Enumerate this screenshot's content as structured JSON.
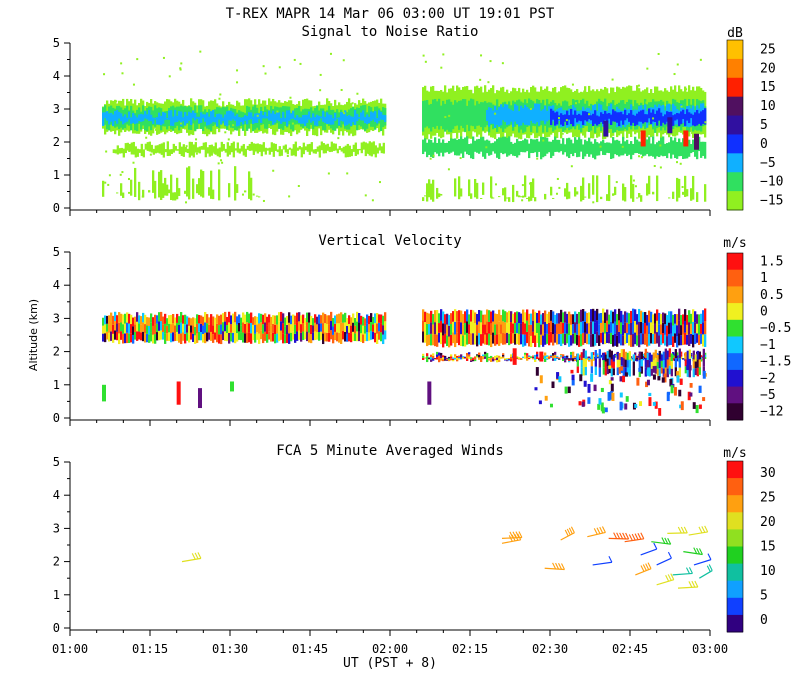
{
  "figure": {
    "title": "T-REX   MAPR 14 Mar 06  03:00 UT  19:01  PST",
    "ylabel": "Altitude (km)",
    "xlabel": "UT  (PST + 8)",
    "x_ticks": [
      "01:00",
      "01:15",
      "01:30",
      "01:45",
      "02:00",
      "02:15",
      "02:30",
      "02:45",
      "03:00"
    ],
    "y_ticks": [
      "0",
      "1",
      "2",
      "3",
      "4",
      "5"
    ]
  },
  "chart_data": [
    {
      "type": "heatmap",
      "title": "Signal to Noise Ratio",
      "unit": "dB",
      "xlim": [
        "01:00",
        "03:00"
      ],
      "ylim": [
        0,
        5
      ],
      "colorbar": {
        "labels": [
          "25",
          "20",
          "15",
          "10",
          "5",
          "0",
          "-5",
          "-10",
          "-15"
        ],
        "colors": [
          "#ffc000",
          "#ff8000",
          "#ff2000",
          "#501060",
          "#3010a0",
          "#1030ff",
          "#10b0ff",
          "#30e060",
          "#90f020"
        ]
      },
      "layers": [
        {
          "t0": "01:06",
          "t1": "01:59",
          "z0": 2.3,
          "z1": 3.2,
          "level": -15
        },
        {
          "t0": "01:06",
          "t1": "01:59",
          "z0": 2.45,
          "z1": 3.0,
          "level": -10
        },
        {
          "t0": "01:06",
          "t1": "01:59",
          "z0": 2.6,
          "z1": 2.85,
          "level": -5
        },
        {
          "t0": "01:08",
          "t1": "01:59",
          "z0": 1.65,
          "z1": 1.9,
          "level": -15
        },
        {
          "t0": "01:06",
          "t1": "01:36",
          "z0": 0.35,
          "z1": 1.3,
          "level": -15
        },
        {
          "t0": "02:06",
          "t1": "02:59",
          "z0": 2.2,
          "z1": 3.6,
          "level": -15
        },
        {
          "t0": "02:06",
          "t1": "02:59",
          "z0": 2.4,
          "z1": 3.2,
          "level": -10
        },
        {
          "t0": "02:18",
          "t1": "02:59",
          "z0": 2.55,
          "z1": 3.05,
          "level": -5
        },
        {
          "t0": "02:30",
          "t1": "02:59",
          "z0": 2.6,
          "z1": 2.9,
          "level": 0
        },
        {
          "t0": "02:06",
          "t1": "02:59",
          "z0": 1.6,
          "z1": 2.05,
          "level": -10
        },
        {
          "t0": "02:06",
          "t1": "02:59",
          "z0": 0.3,
          "z1": 1.0,
          "level": -15
        }
      ]
    },
    {
      "type": "heatmap",
      "title": "Vertical Velocity",
      "unit": "m/s",
      "xlim": [
        "01:00",
        "03:00"
      ],
      "ylim": [
        0,
        5
      ],
      "colorbar": {
        "labels": [
          "1.5",
          "1",
          "0.5",
          "0",
          "-0.5",
          "-1",
          "-1.5",
          "-2",
          "-5",
          "-12"
        ],
        "colors": [
          "#ff1010",
          "#ff6010",
          "#ffa010",
          "#f0f020",
          "#30e030",
          "#10c8ff",
          "#1068ff",
          "#2010d0",
          "#601080",
          "#300030"
        ]
      },
      "layers": [
        {
          "t0": "01:06",
          "t1": "01:59",
          "z0": 2.3,
          "z1": 3.1,
          "level": "mixed"
        },
        {
          "t0": "02:06",
          "t1": "02:59",
          "z0": 2.2,
          "z1": 3.2,
          "level": "mixed"
        },
        {
          "t0": "02:06",
          "t1": "02:59",
          "z0": 1.75,
          "z1": 1.9,
          "level": "mixed"
        },
        {
          "t0": "02:35",
          "t1": "02:59",
          "z0": 1.3,
          "z1": 2.0,
          "level": "mixed"
        }
      ]
    },
    {
      "type": "scatter",
      "title": "FCA 5 Minute Averaged Winds",
      "unit": "m/s",
      "xlim": [
        "01:00",
        "03:00"
      ],
      "ylim": [
        0,
        5
      ],
      "colorbar": {
        "labels": [
          "30",
          "25",
          "20",
          "15",
          "10",
          "5",
          "0"
        ],
        "colors": [
          "#ff1010",
          "#ff6010",
          "#ffa010",
          "#e0e020",
          "#90e020",
          "#20d020",
          "#10c0a0",
          "#10a0ff",
          "#1040ff",
          "#300080"
        ]
      },
      "barbs": [
        {
          "t": "01:21",
          "z": 2.0,
          "speed": 20
        },
        {
          "t": "02:21",
          "z": 2.55,
          "speed": 25
        },
        {
          "t": "02:21",
          "z": 2.7,
          "speed": 25
        },
        {
          "t": "02:29",
          "z": 1.8,
          "speed": 25
        },
        {
          "t": "02:32",
          "z": 2.65,
          "speed": 22
        },
        {
          "t": "02:37",
          "z": 2.75,
          "speed": 25
        },
        {
          "t": "02:38",
          "z": 1.9,
          "speed": 3
        },
        {
          "t": "02:41",
          "z": 2.7,
          "speed": 27
        },
        {
          "t": "02:44",
          "z": 2.6,
          "speed": 28
        },
        {
          "t": "02:46",
          "z": 1.6,
          "speed": 22
        },
        {
          "t": "02:47",
          "z": 2.2,
          "speed": 3
        },
        {
          "t": "02:49",
          "z": 2.6,
          "speed": 15
        },
        {
          "t": "02:50",
          "z": 1.9,
          "speed": 5
        },
        {
          "t": "02:50",
          "z": 1.3,
          "speed": 20
        },
        {
          "t": "02:52",
          "z": 2.85,
          "speed": 20
        },
        {
          "t": "02:53",
          "z": 1.6,
          "speed": 10
        },
        {
          "t": "02:54",
          "z": 1.2,
          "speed": 20
        },
        {
          "t": "02:55",
          "z": 2.3,
          "speed": 15
        },
        {
          "t": "02:56",
          "z": 2.8,
          "speed": 20
        },
        {
          "t": "02:57",
          "z": 1.9,
          "speed": 3
        },
        {
          "t": "02:58",
          "z": 1.5,
          "speed": 10
        }
      ]
    }
  ]
}
